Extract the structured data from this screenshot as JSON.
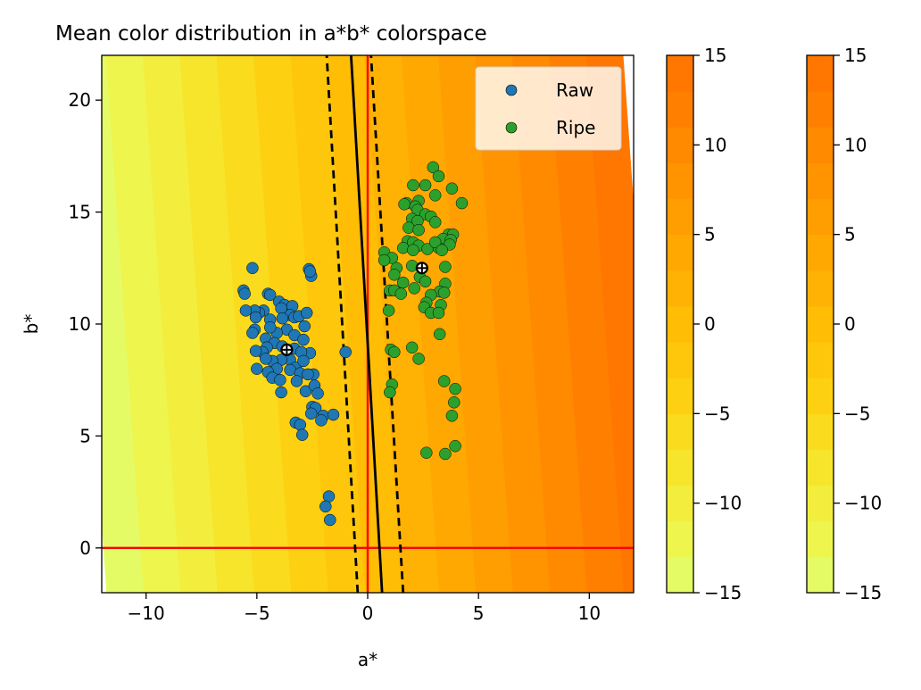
{
  "chart_data": {
    "type": "scatter",
    "title": "Mean color distribution in a*b* colorspace",
    "xlabel": "a*",
    "ylabel": "b*",
    "xlim": [
      -12,
      12
    ],
    "ylim": [
      -2,
      22
    ],
    "xticks": [
      -10,
      -5,
      0,
      5,
      10
    ],
    "yticks": [
      0,
      5,
      10,
      15,
      20
    ],
    "grid": false,
    "legend_position": "top-right",
    "reference_lines": {
      "vertical_x": 0,
      "horizontal_y": 0,
      "color": "#ff0000"
    },
    "decision_boundary": {
      "center": {
        "from": [
          0.65,
          -2
        ],
        "to": [
          -0.75,
          22
        ]
      },
      "margin_left": {
        "from": [
          -0.45,
          -2
        ],
        "to": [
          -1.85,
          22
        ]
      },
      "margin_right": {
        "from": [
          1.6,
          -2
        ],
        "to": [
          0.15,
          22
        ]
      }
    },
    "background_field": {
      "levels": [
        -15,
        -13,
        -11,
        -9,
        -7,
        -5,
        -3,
        -1,
        1,
        3,
        5,
        7,
        9,
        11,
        13,
        15
      ],
      "x_coefficient": 1.2,
      "y_coefficient": 0.085,
      "offset": -0.7,
      "colors": [
        "#e5fb66",
        "#eef54d",
        "#f3ee3e",
        "#f7e52b",
        "#fbdb1d",
        "#fdd112",
        "#fec70b",
        "#ffbd06",
        "#ffb204",
        "#ffa802",
        "#ff9e01",
        "#ff9400",
        "#ff8a00",
        "#ff8000",
        "#ff7700"
      ]
    },
    "colorbars": [
      {
        "min": -15,
        "max": 15,
        "ticks": [
          15,
          10,
          5,
          0,
          -5,
          -10,
          -15
        ]
      },
      {
        "min": -15,
        "max": 15,
        "ticks": [
          15,
          10,
          5,
          0,
          -5,
          -10,
          -15
        ]
      }
    ],
    "series": [
      {
        "name": "Raw",
        "color": "#1f77b4",
        "mean": [
          -3.65,
          8.85
        ],
        "points": [
          [
            -5.2,
            12.5
          ],
          [
            -5.6,
            11.5
          ],
          [
            -5.55,
            11.35
          ],
          [
            -4.5,
            11.35
          ],
          [
            -4.4,
            11.3
          ],
          [
            -4.0,
            11.0
          ],
          [
            -3.75,
            10.85
          ],
          [
            -3.9,
            10.7
          ],
          [
            -3.4,
            10.8
          ],
          [
            -3.5,
            10.4
          ],
          [
            -3.3,
            10.3
          ],
          [
            -4.7,
            10.6
          ],
          [
            -4.9,
            10.5
          ],
          [
            -5.1,
            10.6
          ],
          [
            -5.5,
            10.6
          ],
          [
            -5.05,
            10.3
          ],
          [
            -4.4,
            10.2
          ],
          [
            -3.85,
            10.25
          ],
          [
            -3.1,
            10.35
          ],
          [
            -2.75,
            10.5
          ],
          [
            -3.65,
            9.75
          ],
          [
            -4.1,
            9.6
          ],
          [
            -4.4,
            9.85
          ],
          [
            -5.1,
            9.75
          ],
          [
            -5.2,
            9.6
          ],
          [
            -2.85,
            9.9
          ],
          [
            -3.3,
            9.5
          ],
          [
            -2.9,
            9.3
          ],
          [
            -4.6,
            9.35
          ],
          [
            -4.2,
            9.15
          ],
          [
            -3.85,
            9.0
          ],
          [
            -4.55,
            8.95
          ],
          [
            -4.75,
            8.75
          ],
          [
            -5.05,
            8.8
          ],
          [
            -3.3,
            8.9
          ],
          [
            -2.6,
            8.7
          ],
          [
            -3.0,
            8.75
          ],
          [
            -3.5,
            8.4
          ],
          [
            -3.9,
            8.4
          ],
          [
            -4.3,
            8.35
          ],
          [
            -4.6,
            8.45
          ],
          [
            -4.1,
            8.0
          ],
          [
            -4.5,
            7.85
          ],
          [
            -5.0,
            8.0
          ],
          [
            -4.3,
            7.6
          ],
          [
            -3.25,
            8.05
          ],
          [
            -3.5,
            7.95
          ],
          [
            -2.9,
            8.35
          ],
          [
            -3.05,
            7.8
          ],
          [
            -3.95,
            7.5
          ],
          [
            -3.2,
            7.45
          ],
          [
            -3.9,
            6.95
          ],
          [
            -2.8,
            7.0
          ],
          [
            -2.45,
            7.75
          ],
          [
            -2.7,
            7.75
          ],
          [
            -2.4,
            7.25
          ],
          [
            -2.25,
            6.9
          ],
          [
            -2.5,
            6.3
          ],
          [
            -2.35,
            6.25
          ],
          [
            -2.55,
            6.0
          ],
          [
            -2.0,
            5.9
          ],
          [
            -2.1,
            5.7
          ],
          [
            -1.55,
            5.95
          ],
          [
            -3.25,
            5.6
          ],
          [
            -3.05,
            5.5
          ],
          [
            -2.95,
            5.05
          ],
          [
            -2.65,
            12.45
          ],
          [
            -2.55,
            12.15
          ],
          [
            -2.6,
            12.35
          ],
          [
            -1.0,
            8.75
          ],
          [
            -1.75,
            2.3
          ],
          [
            -1.9,
            1.85
          ],
          [
            -1.7,
            1.25
          ]
        ]
      },
      {
        "name": "Ripe",
        "color": "#2ca02c",
        "mean": [
          2.45,
          12.5
        ],
        "points": [
          [
            2.95,
            17.0
          ],
          [
            3.2,
            16.6
          ],
          [
            2.05,
            16.2
          ],
          [
            2.6,
            16.2
          ],
          [
            3.8,
            16.05
          ],
          [
            2.3,
            15.5
          ],
          [
            1.75,
            15.4
          ],
          [
            1.65,
            15.35
          ],
          [
            2.15,
            15.25
          ],
          [
            3.05,
            15.75
          ],
          [
            4.25,
            15.4
          ],
          [
            2.25,
            15.1
          ],
          [
            2.6,
            14.9
          ],
          [
            2.0,
            14.7
          ],
          [
            2.25,
            14.6
          ],
          [
            2.85,
            14.8
          ],
          [
            3.05,
            14.55
          ],
          [
            1.85,
            14.3
          ],
          [
            2.3,
            14.2
          ],
          [
            3.65,
            14.0
          ],
          [
            3.85,
            14.0
          ],
          [
            3.4,
            13.8
          ],
          [
            3.75,
            13.75
          ],
          [
            1.8,
            13.7
          ],
          [
            2.05,
            13.65
          ],
          [
            2.3,
            13.5
          ],
          [
            1.6,
            13.4
          ],
          [
            2.7,
            13.35
          ],
          [
            3.2,
            13.4
          ],
          [
            2.05,
            13.3
          ],
          [
            3.7,
            13.55
          ],
          [
            3.05,
            13.65
          ],
          [
            3.35,
            13.3
          ],
          [
            0.75,
            13.2
          ],
          [
            1.1,
            12.95
          ],
          [
            0.75,
            12.85
          ],
          [
            2.0,
            12.6
          ],
          [
            1.3,
            12.5
          ],
          [
            2.35,
            12.1
          ],
          [
            1.2,
            12.2
          ],
          [
            3.5,
            12.55
          ],
          [
            1.6,
            11.85
          ],
          [
            2.6,
            11.9
          ],
          [
            3.5,
            11.8
          ],
          [
            2.1,
            11.6
          ],
          [
            1.0,
            11.5
          ],
          [
            1.2,
            11.5
          ],
          [
            1.5,
            11.35
          ],
          [
            3.25,
            11.45
          ],
          [
            2.85,
            11.3
          ],
          [
            3.45,
            11.4
          ],
          [
            2.65,
            10.95
          ],
          [
            3.3,
            10.85
          ],
          [
            2.55,
            10.75
          ],
          [
            2.85,
            10.5
          ],
          [
            3.2,
            10.5
          ],
          [
            0.95,
            10.6
          ],
          [
            3.25,
            9.55
          ],
          [
            1.05,
            8.85
          ],
          [
            1.2,
            8.75
          ],
          [
            2.0,
            8.95
          ],
          [
            2.3,
            8.45
          ],
          [
            1.1,
            7.3
          ],
          [
            1.0,
            6.95
          ],
          [
            3.45,
            7.45
          ],
          [
            3.95,
            7.1
          ],
          [
            3.9,
            6.5
          ],
          [
            3.8,
            5.9
          ],
          [
            3.95,
            4.55
          ],
          [
            2.65,
            4.25
          ],
          [
            3.5,
            4.2
          ]
        ]
      }
    ]
  }
}
